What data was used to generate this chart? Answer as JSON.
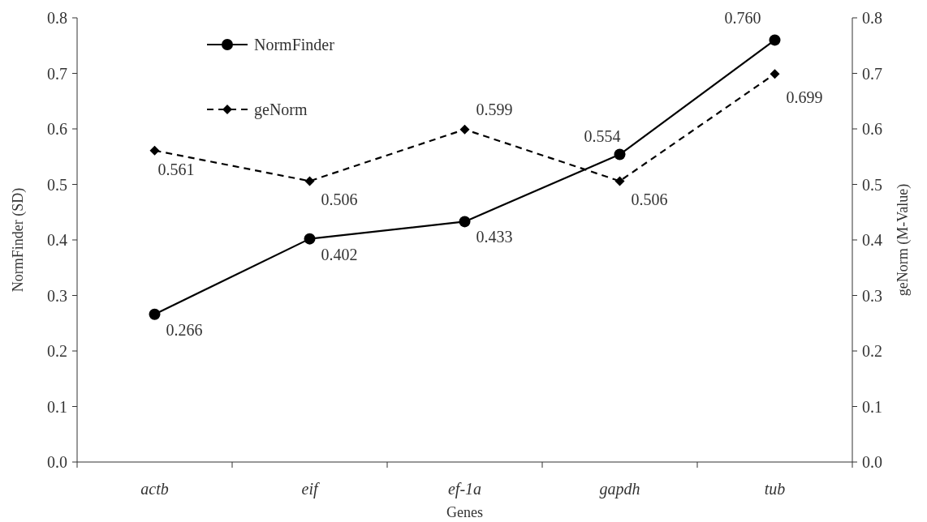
{
  "chart_data": {
    "type": "line",
    "xlabel": "Genes",
    "ylabel": "NormFinder (SD)",
    "y2label": "geNorm (M-Value)",
    "categories": [
      "actb",
      "eif",
      "ef-1a",
      "gapdh",
      "tub"
    ],
    "series": [
      {
        "name": "NormFinder",
        "color": "#000000",
        "values": [
          0.266,
          0.402,
          0.433,
          0.554,
          0.76
        ],
        "value_labels": [
          "0.266",
          "0.402",
          "0.433",
          "0.554",
          "0.760"
        ],
        "marker": "circle",
        "line_style": "solid"
      },
      {
        "name": "geNorm",
        "color": "#000000",
        "values": [
          0.561,
          0.506,
          0.599,
          0.506,
          0.699
        ],
        "value_labels": [
          "0.561",
          "0.506",
          "0.599",
          "0.506",
          "0.699"
        ],
        "marker": "diamond",
        "line_style": "dashed",
        "axis": "y2"
      }
    ],
    "ylim": [
      0,
      0.8
    ],
    "yticks": [
      {
        "value": 0,
        "label": "0.0"
      },
      {
        "value": 0.1,
        "label": "0.1"
      },
      {
        "value": 0.2,
        "label": "0.2"
      },
      {
        "value": 0.3,
        "label": "0.3"
      },
      {
        "value": 0.4,
        "label": "0.4"
      },
      {
        "value": 0.5,
        "label": "0.5"
      },
      {
        "value": 0.6,
        "label": "0.6"
      },
      {
        "value": 0.7,
        "label": "0.7"
      },
      {
        "value": 0.8,
        "label": "0.8"
      }
    ],
    "y2lim": [
      0,
      0.8
    ],
    "y2ticks": [
      {
        "value": 0,
        "label": "0.0"
      },
      {
        "value": 0.1,
        "label": "0.1"
      },
      {
        "value": 0.2,
        "label": "0.2"
      },
      {
        "value": 0.3,
        "label": "0.3"
      },
      {
        "value": 0.4,
        "label": "0.4"
      },
      {
        "value": 0.5,
        "label": "0.5"
      },
      {
        "value": 0.6,
        "label": "0.6"
      },
      {
        "value": 0.7,
        "label": "0.7"
      },
      {
        "value": 0.8,
        "label": "0.8"
      }
    ],
    "legend": "top left",
    "grid": false
  }
}
